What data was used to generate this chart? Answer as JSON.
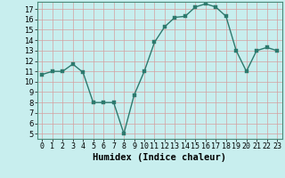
{
  "x": [
    0,
    1,
    2,
    3,
    4,
    5,
    6,
    7,
    8,
    9,
    10,
    11,
    12,
    13,
    14,
    15,
    16,
    17,
    18,
    19,
    20,
    21,
    22,
    23
  ],
  "y": [
    10.7,
    11.0,
    11.0,
    11.7,
    10.9,
    8.0,
    8.0,
    8.0,
    5.0,
    8.7,
    11.0,
    13.8,
    15.3,
    16.2,
    16.3,
    17.2,
    17.5,
    17.2,
    16.3,
    13.0,
    11.0,
    13.0,
    13.3,
    13.0
  ],
  "line_color": "#2d7a6e",
  "marker_color": "#2d7a6e",
  "bg_color": "#c8eeee",
  "grid_color": "#d4a0a0",
  "xlabel": "Humidex (Indice chaleur)",
  "xlim": [
    -0.5,
    23.5
  ],
  "ylim": [
    4.5,
    17.7
  ],
  "yticks": [
    5,
    6,
    7,
    8,
    9,
    10,
    11,
    12,
    13,
    14,
    15,
    16,
    17
  ],
  "xtick_labels": [
    "0",
    "1",
    "2",
    "3",
    "4",
    "5",
    "6",
    "7",
    "8",
    "9",
    "10",
    "11",
    "12",
    "13",
    "14",
    "15",
    "16",
    "17",
    "18",
    "19",
    "20",
    "21",
    "22",
    "23"
  ],
  "label_fontsize": 7.5,
  "tick_fontsize": 6.0
}
